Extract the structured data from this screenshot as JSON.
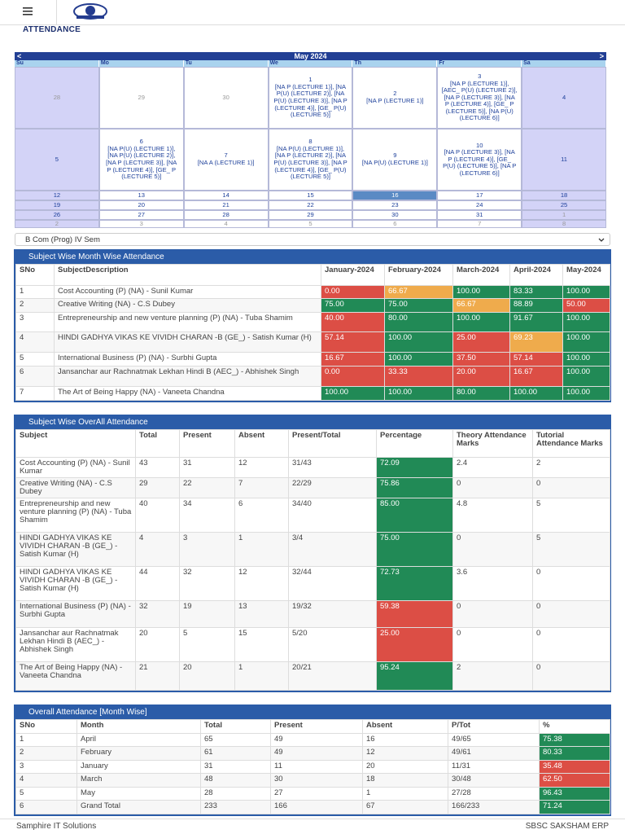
{
  "header": {
    "title": "ATTENDANCE"
  },
  "calendar": {
    "prev": "<",
    "month": "May 2024",
    "next": ">",
    "weekdays": [
      "Su",
      "Mo",
      "Tu",
      "We",
      "Th",
      "Fr",
      "Sa"
    ],
    "weeks": [
      [
        {
          "day": "28",
          "other": true
        },
        {
          "day": "29",
          "other": true
        },
        {
          "day": "30",
          "other": true
        },
        {
          "day": "1",
          "events": "[NA P (LECTURE 1)], [NA P(U) (LECTURE 2)], [NA P(U) (LECTURE 3)], [NA P (LECTURE 4)], [GE_ P(U) (LECTURE 5)]"
        },
        {
          "day": "2",
          "events": "[NA P (LECTURE 1)]"
        },
        {
          "day": "3",
          "events": "[NA P (LECTURE 1)], [AEC_ P(U) (LECTURE 2)], [NA P (LECTURE 3)], [NA P (LECTURE 4)], [GE_ P (LECTURE 5)], [NA P(U) (LECTURE 6)]"
        },
        {
          "day": "4"
        }
      ],
      [
        {
          "day": "5"
        },
        {
          "day": "6",
          "events": "[NA P(U) (LECTURE 1)], [NA P(U) (LECTURE 2)], [NA P (LECTURE 3)], [NA P (LECTURE 4)], [GE_ P (LECTURE 5)]"
        },
        {
          "day": "7",
          "events": "[NA A (LECTURE 1)]"
        },
        {
          "day": "8",
          "events": "[NA P(U) (LECTURE 1)], [NA P (LECTURE 2)], [NA P(U) (LECTURE 3)], [NA P (LECTURE 4)], [GE_ P(U) (LECTURE 5)]"
        },
        {
          "day": "9",
          "events": "[NA P(U) (LECTURE 1)]"
        },
        {
          "day": "10",
          "events": "[NA P (LECTURE 3)], [NA P (LECTURE 4)], [GE_ P(U) (LECTURE 5)], [NA P (LECTURE 6)]"
        },
        {
          "day": "11"
        }
      ],
      [
        {
          "day": "12"
        },
        {
          "day": "13"
        },
        {
          "day": "14"
        },
        {
          "day": "15"
        },
        {
          "day": "16",
          "selected": true
        },
        {
          "day": "17"
        },
        {
          "day": "18"
        }
      ],
      [
        {
          "day": "19"
        },
        {
          "day": "20"
        },
        {
          "day": "21"
        },
        {
          "day": "22"
        },
        {
          "day": "23"
        },
        {
          "day": "24"
        },
        {
          "day": "25"
        }
      ],
      [
        {
          "day": "26"
        },
        {
          "day": "27"
        },
        {
          "day": "28"
        },
        {
          "day": "29"
        },
        {
          "day": "30"
        },
        {
          "day": "31"
        },
        {
          "day": "1",
          "other": true
        }
      ],
      [
        {
          "day": "2",
          "other": true
        },
        {
          "day": "3",
          "other": true
        },
        {
          "day": "4",
          "other": true
        },
        {
          "day": "5",
          "other": true
        },
        {
          "day": "6",
          "other": true
        },
        {
          "day": "7",
          "other": true
        },
        {
          "day": "8",
          "other": true
        }
      ]
    ]
  },
  "course_select": "B Com (Prog) IV Sem",
  "month_table": {
    "title": "Subject Wise Month Wise Attendance",
    "columns": [
      "SNo",
      "SubjectDescription",
      "January-2024",
      "February-2024",
      "March-2024",
      "April-2024",
      "May-2024"
    ],
    "rows": [
      [
        "1",
        "Cost Accounting (P) (NA) - Sunil Kumar",
        {
          "text": "0.00",
          "color": "#dc4e45"
        },
        {
          "text": "66.67",
          "color": "#efab4c"
        },
        {
          "text": "100.00",
          "color": "#218a56"
        },
        {
          "text": "83.33",
          "color": "#218a56"
        },
        {
          "text": "100.00",
          "color": "#218a56"
        }
      ],
      [
        "2",
        "Creative Writing (NA) - C.S Dubey",
        {
          "text": "75.00",
          "color": "#218a56"
        },
        {
          "text": "75.00",
          "color": "#218a56"
        },
        {
          "text": "66.67",
          "color": "#efab4c"
        },
        {
          "text": "88.89",
          "color": "#218a56"
        },
        {
          "text": "50.00",
          "color": "#dc4e45"
        }
      ],
      [
        "3",
        "Entrepreneurship and new venture planning (P) (NA) - Tuba Shamim",
        {
          "text": "40.00",
          "color": "#dc4e45"
        },
        {
          "text": "80.00",
          "color": "#218a56"
        },
        {
          "text": "100.00",
          "color": "#218a56"
        },
        {
          "text": "91.67",
          "color": "#218a56"
        },
        {
          "text": "100.00",
          "color": "#218a56"
        }
      ],
      [
        "4",
        "HINDI GADHYA VIKAS KE VIVIDH CHARAN -B (GE_) - Satish Kumar (H)",
        {
          "text": "57.14",
          "color": "#dc4e45"
        },
        {
          "text": "100.00",
          "color": "#218a56"
        },
        {
          "text": "25.00",
          "color": "#dc4e45"
        },
        {
          "text": "69.23",
          "color": "#efab4c"
        },
        {
          "text": "100.00",
          "color": "#218a56"
        }
      ],
      [
        "5",
        "International Business (P) (NA) - Surbhi Gupta",
        {
          "text": "16.67",
          "color": "#dc4e45"
        },
        {
          "text": "100.00",
          "color": "#218a56"
        },
        {
          "text": "37.50",
          "color": "#dc4e45"
        },
        {
          "text": "57.14",
          "color": "#dc4e45"
        },
        {
          "text": "100.00",
          "color": "#218a56"
        }
      ],
      [
        "6",
        "Jansanchar aur Rachnatmak Lekhan Hindi B (AEC_) - Abhishek Singh",
        {
          "text": "0.00",
          "color": "#dc4e45"
        },
        {
          "text": "33.33",
          "color": "#dc4e45"
        },
        {
          "text": "20.00",
          "color": "#dc4e45"
        },
        {
          "text": "16.67",
          "color": "#dc4e45"
        },
        {
          "text": "100.00",
          "color": "#218a56"
        }
      ],
      [
        "7",
        "The Art of Being Happy (NA) - Vaneeta Chandna",
        {
          "text": "100.00",
          "color": "#218a56"
        },
        {
          "text": "100.00",
          "color": "#218a56"
        },
        {
          "text": "80.00",
          "color": "#218a56"
        },
        {
          "text": "100.00",
          "color": "#218a56"
        },
        {
          "text": "100.00",
          "color": "#218a56"
        }
      ]
    ]
  },
  "overall_table": {
    "title": "Subject Wise OverAll Attendance",
    "columns": [
      "Subject",
      "Total",
      "Present",
      "Absent",
      "Present/Total",
      "Percentage",
      "Theory Attendance Marks",
      "Tutorial Attendance Marks"
    ],
    "rows": [
      [
        "Cost Accounting (P) (NA) - Sunil Kumar",
        "43",
        "31",
        "12",
        "31/43",
        {
          "text": "72.09",
          "color": "#218a56"
        },
        "2.4",
        "2"
      ],
      [
        "Creative Writing (NA) - C.S Dubey",
        "29",
        "22",
        "7",
        "22/29",
        {
          "text": "75.86",
          "color": "#218a56"
        },
        "0",
        "0"
      ],
      [
        "Entrepreneurship and new venture planning (P) (NA) - Tuba Shamim",
        "40",
        "34",
        "6",
        "34/40",
        {
          "text": "85.00",
          "color": "#218a56"
        },
        "4.8",
        "5"
      ],
      [
        "HINDI GADHYA VIKAS KE VIVIDH CHARAN -B (GE_) - Satish Kumar (H)",
        "4",
        "3",
        "1",
        "3/4",
        {
          "text": "75.00",
          "color": "#218a56"
        },
        "0",
        "5"
      ],
      [
        "HINDI GADHYA VIKAS KE VIVIDH CHARAN -B (GE_) - Satish Kumar (H)",
        "44",
        "32",
        "12",
        "32/44",
        {
          "text": "72.73",
          "color": "#218a56"
        },
        "3.6",
        "0"
      ],
      [
        "International Business (P) (NA) - Surbhi Gupta",
        "32",
        "19",
        "13",
        "19/32",
        {
          "text": "59.38",
          "color": "#dc4e45"
        },
        "0",
        "0"
      ],
      [
        "Jansanchar aur Rachnatmak Lekhan Hindi B (AEC_) - Abhishek Singh",
        "20",
        "5",
        "15",
        "5/20",
        {
          "text": "25.00",
          "color": "#dc4e45"
        },
        "0",
        "0"
      ],
      [
        "The Art of Being Happy (NA) - Vaneeta Chandna",
        "21",
        "20",
        "1",
        "20/21",
        {
          "text": "95.24",
          "color": "#218a56"
        },
        "2",
        "0"
      ]
    ]
  },
  "monthwise_table": {
    "title": "Overall Attendance [Month Wise]",
    "columns": [
      "SNo",
      "Month",
      "Total",
      "Present",
      "Absent",
      "P/Tot",
      "%"
    ],
    "rows": [
      [
        "1",
        "April",
        "65",
        "49",
        "16",
        "49/65",
        {
          "text": "75.38",
          "color": "#218a56"
        }
      ],
      [
        "2",
        "February",
        "61",
        "49",
        "12",
        "49/61",
        {
          "text": "80.33",
          "color": "#218a56"
        }
      ],
      [
        "3",
        "January",
        "31",
        "11",
        "20",
        "11/31",
        {
          "text": "35.48",
          "color": "#dc4e45"
        }
      ],
      [
        "4",
        "March",
        "48",
        "30",
        "18",
        "30/48",
        {
          "text": "62.50",
          "color": "#dc4e45"
        }
      ],
      [
        "5",
        "May",
        "28",
        "27",
        "1",
        "27/28",
        {
          "text": "96.43",
          "color": "#218a56"
        }
      ],
      [
        "6",
        "Grand Total",
        "233",
        "166",
        "67",
        "166/233",
        {
          "text": "71.24",
          "color": "#218a56"
        }
      ]
    ]
  },
  "footer": {
    "left": "Samphire IT Solutions",
    "right": "SBSC SAKSHAM ERP"
  }
}
